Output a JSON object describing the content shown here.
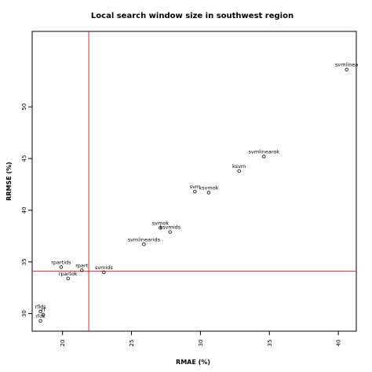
{
  "chart_data": {
    "type": "scatter",
    "title": "Local search window size in southwest region",
    "xlabel": "RMAE (%)",
    "ylabel": "RRMSE (%)",
    "xlim": [
      17.8,
      41.3
    ],
    "ylim": [
      28.3,
      57.3
    ],
    "xticks": [
      20,
      25,
      30,
      35,
      40
    ],
    "yticks": [
      30,
      35,
      40,
      45,
      50
    ],
    "reference_lines": {
      "x": 21.9,
      "y": 34.1,
      "color": "#e8202a"
    },
    "point_color": "#000000",
    "points": [
      {
        "label": "svmlinea",
        "x": 40.6,
        "y": 53.6
      },
      {
        "label": "svmlinearok",
        "x": 34.6,
        "y": 45.2
      },
      {
        "label": "ksvm",
        "x": 32.8,
        "y": 43.8
      },
      {
        "label": "svm",
        "x": 29.6,
        "y": 41.8
      },
      {
        "label": "ksvmok",
        "x": 30.6,
        "y": 41.7
      },
      {
        "label": "svmok",
        "x": 27.1,
        "y": 38.3
      },
      {
        "label": "ksvmids",
        "x": 27.8,
        "y": 37.9
      },
      {
        "label": "svmlinearids",
        "x": 25.9,
        "y": 36.7
      },
      {
        "label": "svmids",
        "x": 23.0,
        "y": 34.0
      },
      {
        "label": "rpartids",
        "x": 19.9,
        "y": 34.5
      },
      {
        "label": "rpart",
        "x": 21.4,
        "y": 34.2
      },
      {
        "label": "rpartok",
        "x": 20.4,
        "y": 33.4
      },
      {
        "label": "rfids",
        "x": 18.4,
        "y": 30.2
      },
      {
        "label": "rf",
        "x": 18.6,
        "y": 29.9
      },
      {
        "label": "rfok",
        "x": 18.4,
        "y": 29.3
      }
    ]
  }
}
